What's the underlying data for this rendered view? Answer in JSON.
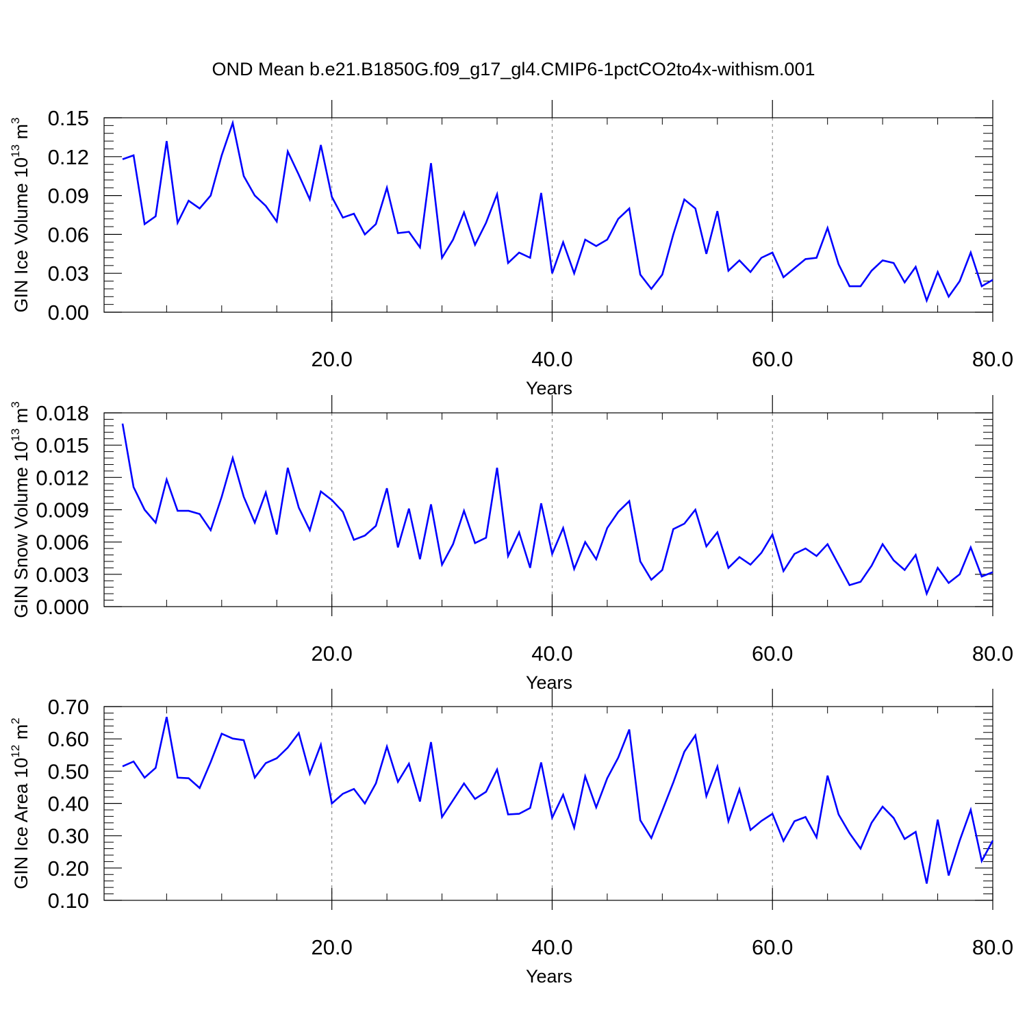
{
  "title": "OND Mean b.e21.B1850G.f09_g17_gl4.CMIP6-1pctCO2to4x-withism.001",
  "colors": {
    "series": "#0000ff",
    "axis": "#000000",
    "grid": "#777777"
  },
  "chart_data": [
    {
      "type": "line",
      "ylabel": "GIN Ice Volume 10",
      "ylabel_exp": "13",
      "ylabel_unit": " m",
      "ylabel_unit_exp": "3",
      "xlabel": "Years",
      "xlim": [
        1,
        80
      ],
      "ylim": [
        0,
        0.15
      ],
      "yticks": [
        0,
        0.03,
        0.06,
        0.09,
        0.12,
        0.15
      ],
      "ytick_labels": [
        "0.00",
        "0.03",
        "0.06",
        "0.09",
        "0.12",
        "0.15"
      ],
      "xticks": [
        20,
        40,
        60,
        80
      ],
      "xtick_labels": [
        "20.0",
        "40.0",
        "60.0",
        "80.0"
      ],
      "grid_x": true,
      "x": [
        1,
        2,
        3,
        4,
        5,
        6,
        7,
        8,
        9,
        10,
        11,
        12,
        13,
        14,
        15,
        16,
        17,
        18,
        19,
        20,
        21,
        22,
        23,
        24,
        25,
        26,
        27,
        28,
        29,
        30,
        31,
        32,
        33,
        34,
        35,
        36,
        37,
        38,
        39,
        40,
        41,
        42,
        43,
        44,
        45,
        46,
        47,
        48,
        49,
        50,
        51,
        52,
        53,
        54,
        55,
        56,
        57,
        58,
        59,
        60,
        61,
        62,
        63,
        64,
        65,
        66,
        67,
        68,
        69,
        70,
        71,
        72,
        73,
        74,
        75,
        76,
        77,
        78,
        79,
        80
      ],
      "values": [
        0.118,
        0.121,
        0.068,
        0.074,
        0.132,
        0.069,
        0.086,
        0.08,
        0.09,
        0.121,
        0.146,
        0.105,
        0.09,
        0.082,
        0.07,
        0.124,
        0.106,
        0.087,
        0.129,
        0.089,
        0.073,
        0.076,
        0.06,
        0.068,
        0.096,
        0.061,
        0.062,
        0.05,
        0.115,
        0.042,
        0.056,
        0.077,
        0.052,
        0.069,
        0.091,
        0.038,
        0.046,
        0.042,
        0.092,
        0.03,
        0.054,
        0.03,
        0.056,
        0.051,
        0.056,
        0.072,
        0.08,
        0.029,
        0.018,
        0.029,
        0.06,
        0.087,
        0.08,
        0.045,
        0.078,
        0.032,
        0.04,
        0.031,
        0.042,
        0.046,
        0.027,
        0.034,
        0.041,
        0.042,
        0.065,
        0.037,
        0.02,
        0.02,
        0.032,
        0.04,
        0.038,
        0.023,
        0.035,
        0.009,
        0.031,
        0.012,
        0.024,
        0.046,
        0.02,
        0.025
      ]
    },
    {
      "type": "line",
      "ylabel": "GIN Snow Volume 10",
      "ylabel_exp": "13",
      "ylabel_unit": " m",
      "ylabel_unit_exp": "3",
      "xlabel": "Years",
      "xlim": [
        1,
        80
      ],
      "ylim": [
        0,
        0.018
      ],
      "yticks": [
        0,
        0.003,
        0.006,
        0.009,
        0.012,
        0.015,
        0.018
      ],
      "ytick_labels": [
        "0.000",
        "0.003",
        "0.006",
        "0.009",
        "0.012",
        "0.015",
        "0.018"
      ],
      "xticks": [
        20,
        40,
        60,
        80
      ],
      "xtick_labels": [
        "20.0",
        "40.0",
        "60.0",
        "80.0"
      ],
      "grid_x": true,
      "x": [
        1,
        2,
        3,
        4,
        5,
        6,
        7,
        8,
        9,
        10,
        11,
        12,
        13,
        14,
        15,
        16,
        17,
        18,
        19,
        20,
        21,
        22,
        23,
        24,
        25,
        26,
        27,
        28,
        29,
        30,
        31,
        32,
        33,
        34,
        35,
        36,
        37,
        38,
        39,
        40,
        41,
        42,
        43,
        44,
        45,
        46,
        47,
        48,
        49,
        50,
        51,
        52,
        53,
        54,
        55,
        56,
        57,
        58,
        59,
        60,
        61,
        62,
        63,
        64,
        65,
        66,
        67,
        68,
        69,
        70,
        71,
        72,
        73,
        74,
        75,
        76,
        77,
        78,
        79,
        80
      ],
      "values": [
        0.017,
        0.0111,
        0.009,
        0.0078,
        0.0118,
        0.0089,
        0.0089,
        0.0086,
        0.0071,
        0.0102,
        0.0138,
        0.0102,
        0.0078,
        0.0106,
        0.0067,
        0.0129,
        0.0092,
        0.0071,
        0.0107,
        0.0099,
        0.0088,
        0.0062,
        0.0066,
        0.0075,
        0.011,
        0.0055,
        0.0091,
        0.0044,
        0.0095,
        0.0039,
        0.0058,
        0.0089,
        0.0059,
        0.0064,
        0.0129,
        0.0047,
        0.0069,
        0.0036,
        0.0096,
        0.0049,
        0.0073,
        0.0035,
        0.006,
        0.0044,
        0.0073,
        0.0088,
        0.0098,
        0.0042,
        0.0025,
        0.0034,
        0.0072,
        0.0077,
        0.009,
        0.0056,
        0.0069,
        0.0036,
        0.0046,
        0.0039,
        0.005,
        0.0067,
        0.0033,
        0.0049,
        0.0054,
        0.0047,
        0.0058,
        0.0039,
        0.002,
        0.0023,
        0.0038,
        0.0058,
        0.0043,
        0.0034,
        0.0048,
        0.0012,
        0.0036,
        0.0022,
        0.003,
        0.0055,
        0.0028,
        0.0032
      ]
    },
    {
      "type": "line",
      "ylabel": "GIN Ice Area 10",
      "ylabel_exp": "12",
      "ylabel_unit": " m",
      "ylabel_unit_exp": "2",
      "xlabel": "Years",
      "xlim": [
        1,
        80
      ],
      "ylim": [
        0.1,
        0.7
      ],
      "yticks": [
        0.1,
        0.2,
        0.3,
        0.4,
        0.5,
        0.6,
        0.7
      ],
      "ytick_labels": [
        "0.10",
        "0.20",
        "0.30",
        "0.40",
        "0.50",
        "0.60",
        "0.70"
      ],
      "xticks": [
        20,
        40,
        60,
        80
      ],
      "xtick_labels": [
        "20.0",
        "40.0",
        "60.0",
        "80.0"
      ],
      "grid_x": true,
      "x": [
        1,
        2,
        3,
        4,
        5,
        6,
        7,
        8,
        9,
        10,
        11,
        12,
        13,
        14,
        15,
        16,
        17,
        18,
        19,
        20,
        21,
        22,
        23,
        24,
        25,
        26,
        27,
        28,
        29,
        30,
        31,
        32,
        33,
        34,
        35,
        36,
        37,
        38,
        39,
        40,
        41,
        42,
        43,
        44,
        45,
        46,
        47,
        48,
        49,
        50,
        51,
        52,
        53,
        54,
        55,
        56,
        57,
        58,
        59,
        60,
        61,
        62,
        63,
        64,
        65,
        66,
        67,
        68,
        69,
        70,
        71,
        72,
        73,
        74,
        75,
        76,
        77,
        78,
        79,
        80
      ],
      "values": [
        0.515,
        0.53,
        0.48,
        0.51,
        0.668,
        0.48,
        0.478,
        0.448,
        0.528,
        0.616,
        0.601,
        0.596,
        0.48,
        0.525,
        0.54,
        0.573,
        0.618,
        0.492,
        0.582,
        0.4,
        0.43,
        0.445,
        0.4,
        0.462,
        0.576,
        0.467,
        0.523,
        0.406,
        0.59,
        0.358,
        0.41,
        0.462,
        0.414,
        0.436,
        0.505,
        0.366,
        0.368,
        0.386,
        0.527,
        0.356,
        0.427,
        0.325,
        0.484,
        0.388,
        0.478,
        0.542,
        0.629,
        0.348,
        0.293,
        0.378,
        0.465,
        0.56,
        0.611,
        0.423,
        0.514,
        0.345,
        0.444,
        0.318,
        0.346,
        0.368,
        0.284,
        0.345,
        0.358,
        0.295,
        0.486,
        0.366,
        0.308,
        0.26,
        0.34,
        0.39,
        0.355,
        0.29,
        0.312,
        0.152,
        0.35,
        0.177,
        0.285,
        0.38,
        0.222,
        0.285
      ]
    }
  ]
}
